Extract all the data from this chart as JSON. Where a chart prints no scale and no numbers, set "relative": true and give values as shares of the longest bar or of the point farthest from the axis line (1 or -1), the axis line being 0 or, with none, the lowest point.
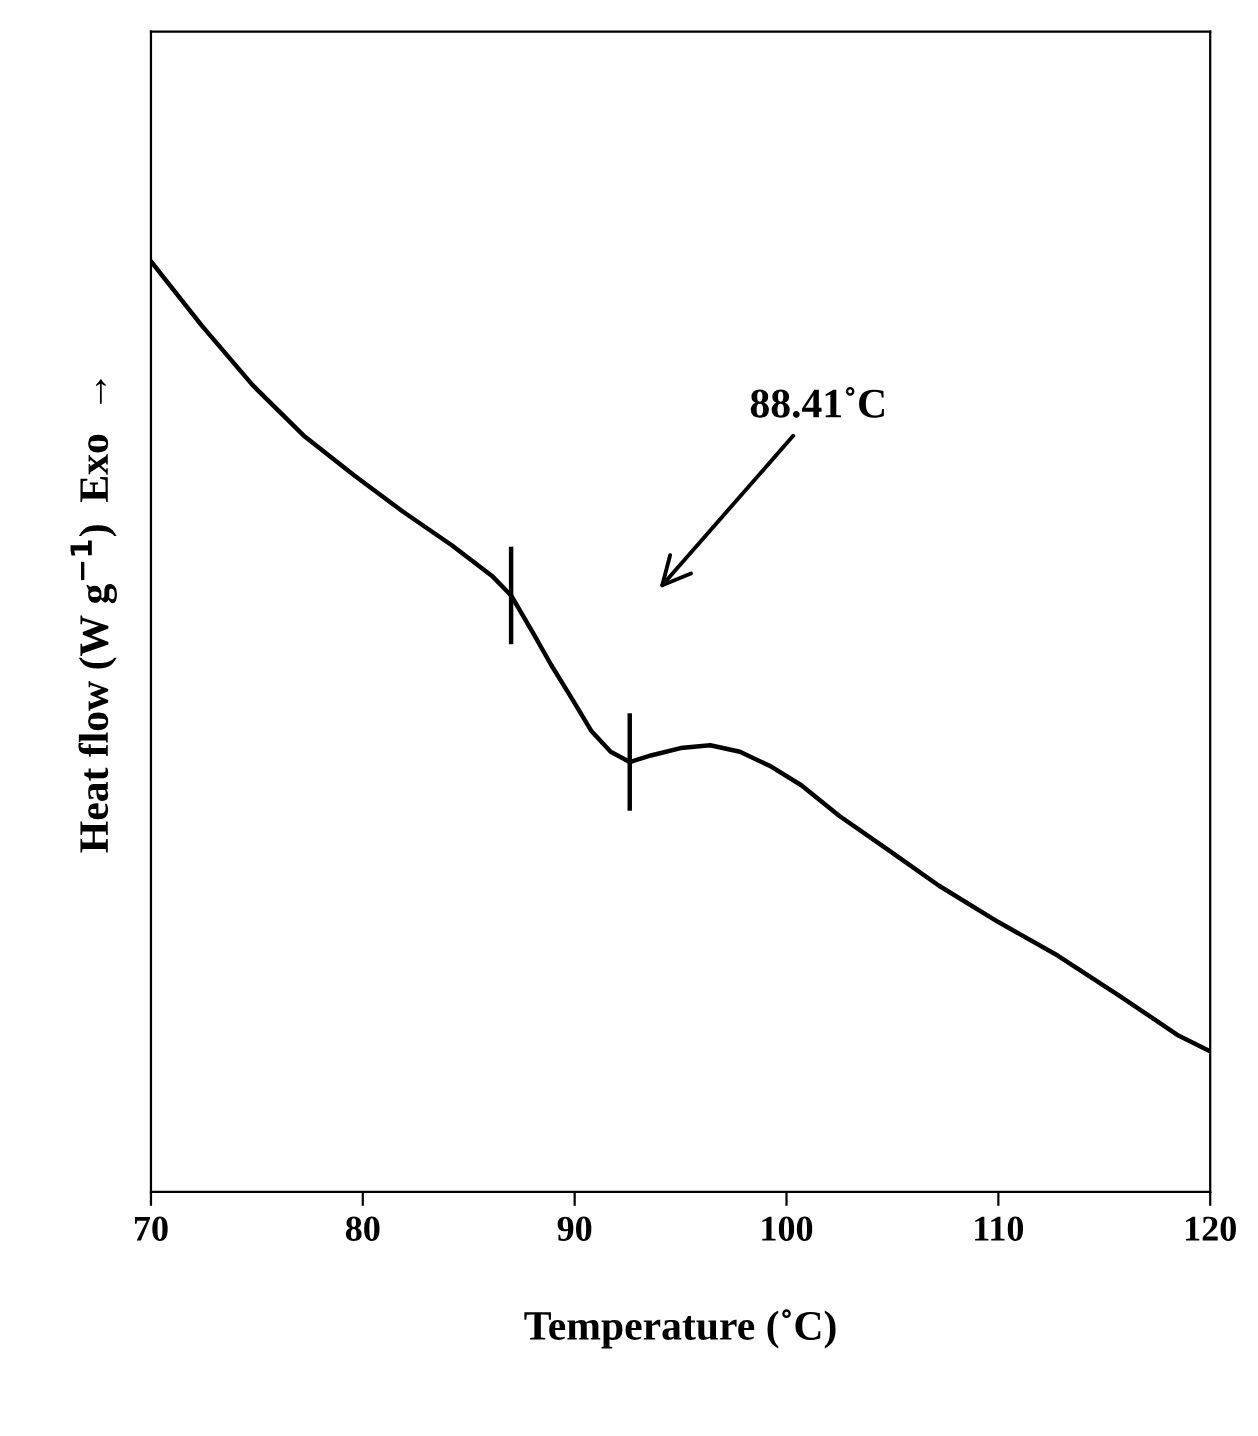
{
  "chart_data": {
    "type": "line",
    "relative": true,
    "xlabel": "Temperature (˚C)",
    "ylabel": "Heat flow (W g$^{−1}$)  Exo  →",
    "xlim": [
      70,
      120
    ],
    "xticks": [
      70,
      80,
      90,
      100,
      110,
      120
    ],
    "tick_labels": "x",
    "grid": false,
    "legend": false,
    "annotations": [
      "88.41˚C"
    ],
    "series": [
      {
        "color": "#000000",
        "marker": "none",
        "line_style": "solid",
        "x": [
          70,
          72.4,
          74.8,
          77.2,
          79.6,
          81.9,
          84.2,
          86.1,
          87,
          88,
          88.9,
          89.9,
          90.8,
          91.7,
          92.6,
          93.6,
          95,
          96.4,
          97.8,
          99.2,
          100.7,
          102.5,
          104.9,
          107.2,
          110,
          112.8,
          115.7,
          118.5,
          120
        ],
        "values": [
          1.0,
          0.931,
          0.867,
          0.813,
          0.77,
          0.731,
          0.695,
          0.662,
          0.641,
          0.602,
          0.566,
          0.529,
          0.495,
          0.473,
          0.462,
          0.469,
          0.477,
          0.48,
          0.473,
          0.458,
          0.437,
          0.404,
          0.366,
          0.329,
          0.29,
          0.254,
          0.211,
          0.168,
          0.151
        ]
      }
    ]
  }
}
